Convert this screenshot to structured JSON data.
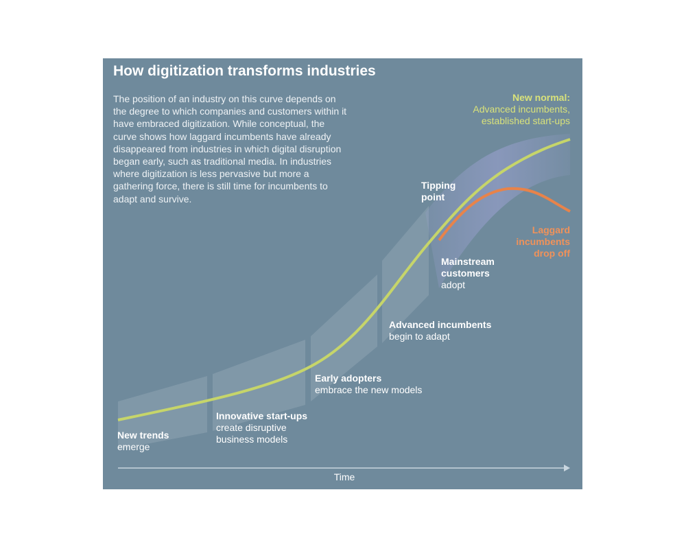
{
  "title": "How digitization transforms industries",
  "description": "The position of an industry on this curve depends on the degree to which companies and customers within it have embraced digitization. While conceptual, the curve shows how laggard incumbents have already disappeared from industries in which digital disruption began early, such as traditional media. In industries where digitization is less pervasive but more a gathering force, there is still time for incumbents to adapt and survive.",
  "x_axis_label": "Time",
  "stages": [
    {
      "heading": [
        "New trends"
      ],
      "body": [
        "emerge"
      ]
    },
    {
      "heading": [
        "Innovative start-ups"
      ],
      "body": [
        "create disruptive",
        "business models"
      ]
    },
    {
      "heading": [
        "Early adopters"
      ],
      "body": [
        "embrace the new models"
      ]
    },
    {
      "heading": [
        "Advanced incumbents"
      ],
      "body": [
        "begin to adapt"
      ]
    },
    {
      "heading": [
        "Mainstream",
        "customers"
      ],
      "body": [
        "adopt"
      ]
    },
    {
      "heading": [
        "Tipping",
        "point"
      ],
      "body": []
    }
  ],
  "outcomes": [
    {
      "heading": [
        "New normal:"
      ],
      "body": [
        "Advanced incumbents,",
        "established start-ups"
      ]
    },
    {
      "heading": [
        "Laggard",
        "incumbents",
        "drop off"
      ],
      "body": []
    }
  ]
}
